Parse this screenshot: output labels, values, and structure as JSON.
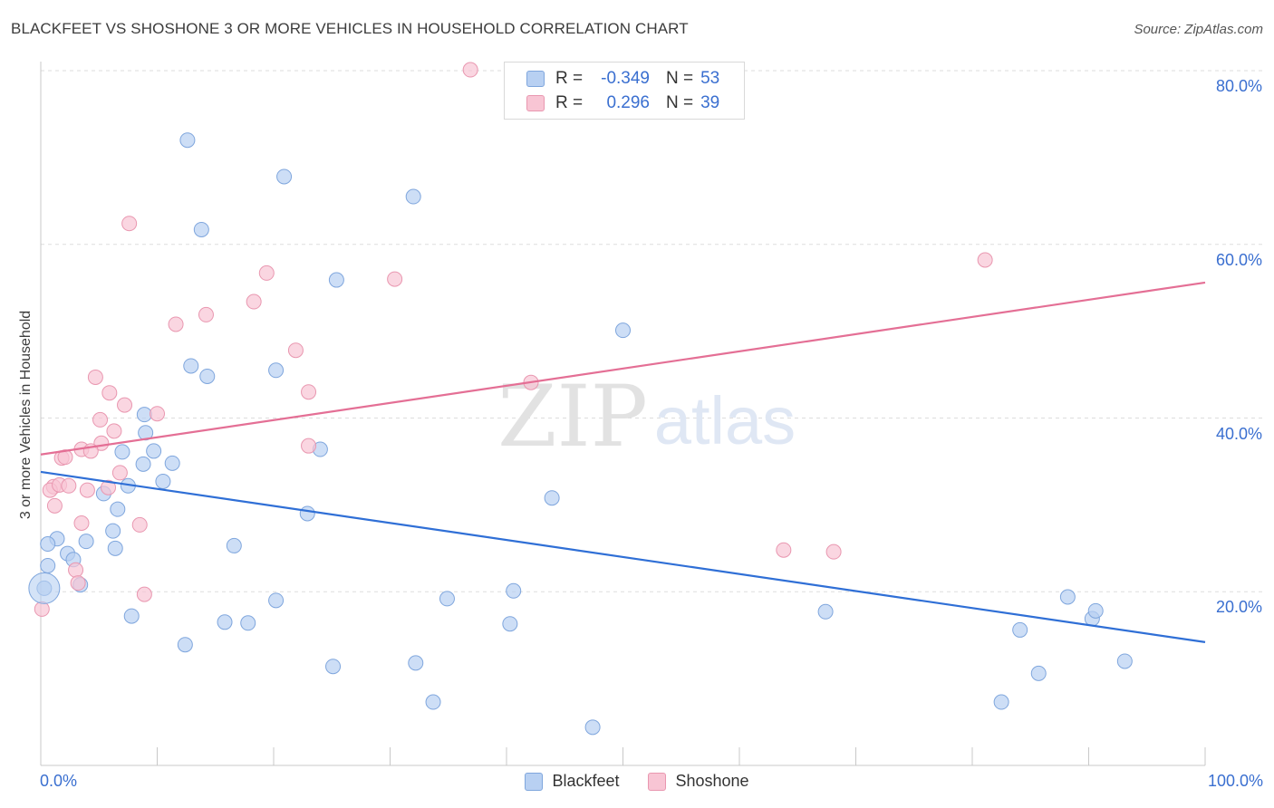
{
  "header": {
    "title": "BLACKFEET VS SHOSHONE 3 OR MORE VEHICLES IN HOUSEHOLD CORRELATION CHART",
    "source": "Source: ZipAtlas.com"
  },
  "watermark": {
    "zip": "ZIP",
    "atlas": "atlas"
  },
  "legend_top": {
    "rows": [
      {
        "r_label": "R =",
        "r_value": "-0.349",
        "n_label": "N =",
        "n_value": "53"
      },
      {
        "r_label": "R =",
        "r_value": "0.296",
        "n_label": "N =",
        "n_value": "39"
      }
    ]
  },
  "legend_bottom": {
    "items": [
      "Blackfeet",
      "Shoshone"
    ]
  },
  "colors": {
    "blackfeet_fill": "#b8d0f2",
    "blackfeet_stroke": "#7fa6dd",
    "blackfeet_line": "#2f6fd6",
    "shoshone_fill": "#f8c5d4",
    "shoshone_stroke": "#e997b0",
    "shoshone_line": "#e46f95",
    "tick_text": "#3a6fd0",
    "grid": "#dddddd"
  },
  "chart_data": {
    "type": "scatter",
    "title": "BLACKFEET VS SHOSHONE 3 OR MORE VEHICLES IN HOUSEHOLD CORRELATION CHART",
    "xlabel": "",
    "ylabel": "3 or more Vehicles in Household",
    "xlim": [
      0,
      100
    ],
    "ylim": [
      0,
      80
    ],
    "x_tick_labels": [
      "0.0%",
      "100.0%"
    ],
    "y_ticks": [
      20,
      40,
      60,
      80
    ],
    "y_tick_labels": [
      "20.0%",
      "40.0%",
      "60.0%",
      "80.0%"
    ],
    "grid": "horizontal dashed",
    "legend_position": "top-center",
    "series": [
      {
        "name": "Blackfeet",
        "trend": {
          "x": [
            0,
            100
          ],
          "y": [
            33.8,
            14.2
          ]
        },
        "points": [
          [
            12.6,
            72.0
          ],
          [
            20.9,
            67.8
          ],
          [
            32.0,
            65.5
          ],
          [
            13.8,
            61.7
          ],
          [
            25.4,
            55.9
          ],
          [
            50.0,
            50.1
          ],
          [
            12.9,
            46.0
          ],
          [
            14.3,
            44.8
          ],
          [
            20.2,
            45.5
          ],
          [
            9.0,
            38.3
          ],
          [
            8.9,
            40.4
          ],
          [
            7.0,
            36.1
          ],
          [
            9.7,
            36.2
          ],
          [
            8.8,
            34.7
          ],
          [
            11.3,
            34.8
          ],
          [
            10.5,
            32.7
          ],
          [
            7.5,
            32.2
          ],
          [
            5.4,
            31.3
          ],
          [
            24.0,
            36.4
          ],
          [
            6.6,
            29.5
          ],
          [
            22.9,
            29.0
          ],
          [
            43.9,
            30.8
          ],
          [
            6.2,
            27.0
          ],
          [
            1.4,
            26.1
          ],
          [
            0.6,
            25.5
          ],
          [
            3.9,
            25.8
          ],
          [
            6.4,
            25.0
          ],
          [
            16.6,
            25.3
          ],
          [
            2.3,
            24.4
          ],
          [
            2.8,
            23.7
          ],
          [
            0.6,
            23.0
          ],
          [
            0.3,
            20.4
          ],
          [
            3.4,
            20.8
          ],
          [
            20.2,
            19.0
          ],
          [
            34.9,
            19.2
          ],
          [
            40.6,
            20.1
          ],
          [
            7.8,
            17.2
          ],
          [
            15.8,
            16.5
          ],
          [
            17.8,
            16.4
          ],
          [
            40.3,
            16.3
          ],
          [
            12.4,
            13.9
          ],
          [
            25.1,
            11.4
          ],
          [
            32.2,
            11.8
          ],
          [
            67.4,
            17.7
          ],
          [
            88.2,
            19.4
          ],
          [
            90.3,
            16.9
          ],
          [
            90.6,
            17.8
          ],
          [
            84.1,
            15.6
          ],
          [
            85.7,
            10.6
          ],
          [
            93.1,
            12.0
          ],
          [
            33.7,
            7.3
          ],
          [
            47.4,
            4.4
          ],
          [
            82.5,
            7.3
          ]
        ]
      },
      {
        "name": "Shoshone",
        "trend": {
          "x": [
            0,
            100
          ],
          "y": [
            35.8,
            55.6
          ]
        },
        "points": [
          [
            36.9,
            80.1
          ],
          [
            7.6,
            62.4
          ],
          [
            19.4,
            56.7
          ],
          [
            30.4,
            56.0
          ],
          [
            81.1,
            58.2
          ],
          [
            14.2,
            51.9
          ],
          [
            18.3,
            53.4
          ],
          [
            11.6,
            50.8
          ],
          [
            21.9,
            47.8
          ],
          [
            4.7,
            44.7
          ],
          [
            5.9,
            42.9
          ],
          [
            23.0,
            43.0
          ],
          [
            42.1,
            44.1
          ],
          [
            7.2,
            41.5
          ],
          [
            10.0,
            40.5
          ],
          [
            5.1,
            39.8
          ],
          [
            6.3,
            38.5
          ],
          [
            5.2,
            37.1
          ],
          [
            3.5,
            36.4
          ],
          [
            4.3,
            36.2
          ],
          [
            23.0,
            36.8
          ],
          [
            1.8,
            35.4
          ],
          [
            2.1,
            35.5
          ],
          [
            6.8,
            33.7
          ],
          [
            1.1,
            32.1
          ],
          [
            0.8,
            31.7
          ],
          [
            1.6,
            32.3
          ],
          [
            2.4,
            32.2
          ],
          [
            4.0,
            31.7
          ],
          [
            5.8,
            32.0
          ],
          [
            1.2,
            29.9
          ],
          [
            3.5,
            27.9
          ],
          [
            8.5,
            27.7
          ],
          [
            3.0,
            22.5
          ],
          [
            3.2,
            21.0
          ],
          [
            8.9,
            19.7
          ],
          [
            0.1,
            18.0
          ],
          [
            63.8,
            24.8
          ],
          [
            68.1,
            24.6
          ]
        ]
      }
    ]
  }
}
